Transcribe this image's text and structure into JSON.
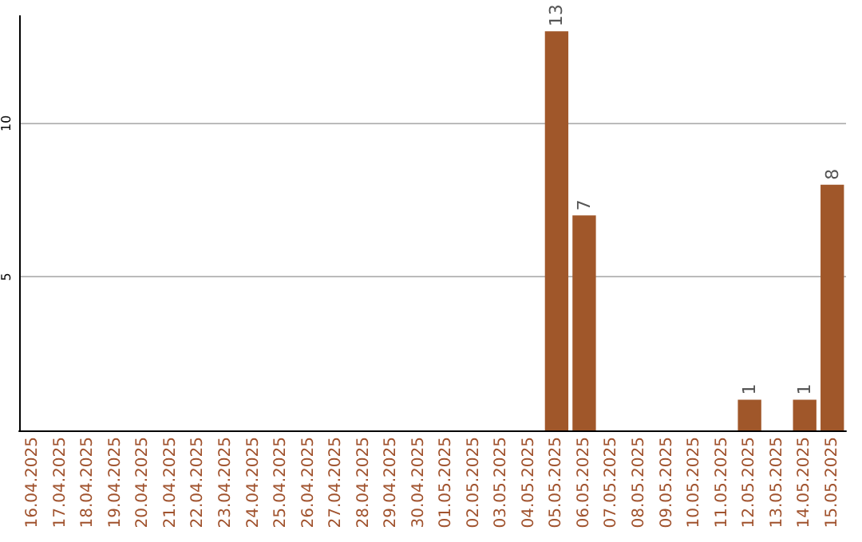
{
  "chart_data": {
    "type": "bar",
    "categories": [
      "16.04.2025",
      "17.04.2025",
      "18.04.2025",
      "19.04.2025",
      "20.04.2025",
      "21.04.2025",
      "22.04.2025",
      "23.04.2025",
      "24.04.2025",
      "25.04.2025",
      "26.04.2025",
      "27.04.2025",
      "28.04.2025",
      "29.04.2025",
      "30.04.2025",
      "01.05.2025",
      "02.05.2025",
      "03.05.2025",
      "04.05.2025",
      "05.05.2025",
      "06.05.2025",
      "07.05.2025",
      "08.05.2025",
      "09.05.2025",
      "10.05.2025",
      "11.05.2025",
      "12.05.2025",
      "13.05.2025",
      "14.05.2025",
      "15.05.2025"
    ],
    "values": [
      0,
      0,
      0,
      0,
      0,
      0,
      0,
      0,
      0,
      0,
      0,
      0,
      0,
      0,
      0,
      0,
      0,
      0,
      0,
      13,
      7,
      0,
      0,
      0,
      0,
      0,
      1,
      0,
      1,
      8
    ],
    "value_labels": [
      null,
      null,
      null,
      null,
      null,
      null,
      null,
      null,
      null,
      null,
      null,
      null,
      null,
      null,
      null,
      null,
      null,
      null,
      null,
      "13",
      "7",
      null,
      null,
      null,
      null,
      null,
      "1",
      null,
      "1",
      "8"
    ],
    "color": "#a0572a",
    "ylim": [
      0,
      13.5
    ],
    "yticks": [
      5,
      10
    ],
    "grid": "y"
  }
}
